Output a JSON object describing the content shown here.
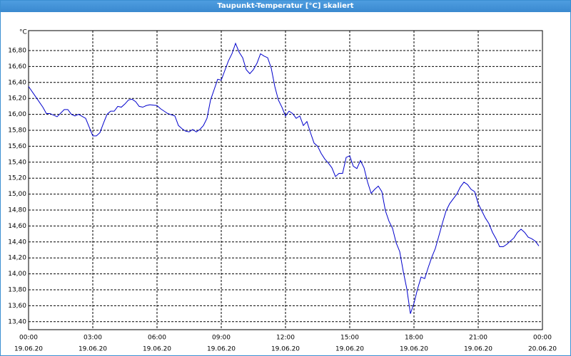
{
  "title": "Taupunkt-Temperatur [°C] skaliert",
  "chart_data": {
    "type": "line",
    "y_label": "°C",
    "x": [
      0,
      20,
      40,
      50,
      60,
      80,
      100,
      110,
      120,
      130,
      140,
      160,
      170,
      180,
      190,
      200,
      210,
      220,
      230,
      240,
      250,
      260,
      270,
      280,
      290,
      300,
      310,
      320,
      330,
      340,
      360,
      370,
      390,
      410,
      420,
      430,
      440,
      450,
      460,
      470,
      480,
      490,
      500,
      510,
      520,
      530,
      540,
      550,
      560,
      570,
      580,
      590,
      600,
      610,
      620,
      630,
      640,
      650,
      660,
      670,
      680,
      690,
      700,
      710,
      720,
      730,
      740,
      750,
      760,
      770,
      780,
      790,
      800,
      810,
      820,
      830,
      840,
      850,
      860,
      870,
      880,
      890,
      900,
      910,
      920,
      930,
      940,
      950,
      960,
      970,
      980,
      990,
      1000,
      1010,
      1020,
      1030,
      1040,
      1050,
      1060,
      1070,
      1080,
      1090,
      1100,
      1110,
      1120,
      1130,
      1140,
      1150,
      1160,
      1170,
      1180,
      1190,
      1200,
      1210,
      1220,
      1230,
      1240,
      1250,
      1260,
      1270,
      1280,
      1290,
      1300,
      1310,
      1320,
      1330,
      1340,
      1350,
      1360,
      1370,
      1380,
      1390,
      1400,
      1410,
      1420,
      1430
    ],
    "series": [
      {
        "color": "#0000cc",
        "values": [
          16.35,
          16.22,
          16.09,
          16.01,
          16.01,
          15.97,
          16.06,
          16.06,
          16.0,
          15.98,
          16.0,
          15.95,
          15.84,
          15.73,
          15.73,
          15.77,
          15.89,
          16.0,
          16.04,
          16.04,
          16.1,
          16.09,
          16.13,
          16.18,
          16.19,
          16.16,
          16.1,
          16.09,
          16.11,
          16.12,
          16.11,
          16.07,
          16.01,
          15.98,
          15.86,
          15.82,
          15.79,
          15.78,
          15.81,
          15.78,
          15.81,
          15.86,
          15.95,
          16.18,
          16.31,
          16.44,
          16.43,
          16.55,
          16.67,
          16.76,
          16.89,
          16.78,
          16.71,
          16.56,
          16.51,
          16.56,
          16.64,
          16.76,
          16.73,
          16.71,
          16.58,
          16.35,
          16.18,
          16.09,
          15.98,
          16.04,
          16.01,
          15.95,
          15.98,
          15.86,
          15.91,
          15.77,
          15.64,
          15.6,
          15.51,
          15.44,
          15.39,
          15.33,
          15.22,
          15.26,
          15.26,
          15.46,
          15.48,
          15.35,
          15.32,
          15.42,
          15.33,
          15.15,
          15.01,
          15.06,
          15.1,
          15.03,
          14.79,
          14.66,
          14.57,
          14.39,
          14.28,
          14.03,
          13.81,
          13.5,
          13.63,
          13.81,
          13.96,
          13.94,
          14.08,
          14.21,
          14.32,
          14.48,
          14.64,
          14.79,
          14.88,
          14.94,
          15.0,
          15.09,
          15.15,
          15.12,
          15.06,
          15.03,
          14.88,
          14.79,
          14.7,
          14.63,
          14.52,
          14.44,
          14.34,
          14.34,
          14.37,
          14.41,
          14.45,
          14.52,
          14.56,
          14.52,
          14.46,
          14.44,
          14.41,
          14.35
        ]
      }
    ],
    "xlim": [
      0,
      1440
    ],
    "xticks": [
      {
        "value": 0,
        "label": "00:00",
        "date": "19.06.20"
      },
      {
        "value": 180,
        "label": "03:00",
        "date": "19.06.20"
      },
      {
        "value": 360,
        "label": "06:00",
        "date": "19.06.20"
      },
      {
        "value": 540,
        "label": "09:00",
        "date": "19.06.20"
      },
      {
        "value": 720,
        "label": "12:00",
        "date": "19.06.20"
      },
      {
        "value": 900,
        "label": "15:00",
        "date": "19.06.20"
      },
      {
        "value": 1080,
        "label": "18:00",
        "date": "19.06.20"
      },
      {
        "value": 1260,
        "label": "21:00",
        "date": "19.06.20"
      },
      {
        "value": 1440,
        "label": "00:00",
        "date": "20.06.20"
      }
    ],
    "ylim": [
      13.3,
      17.05
    ],
    "yticks": [
      {
        "value": 13.4,
        "label": "13,40"
      },
      {
        "value": 13.6,
        "label": "13,60"
      },
      {
        "value": 13.8,
        "label": "13,80"
      },
      {
        "value": 14.0,
        "label": "14,00"
      },
      {
        "value": 14.2,
        "label": "14,20"
      },
      {
        "value": 14.4,
        "label": "14,40"
      },
      {
        "value": 14.6,
        "label": "14,60"
      },
      {
        "value": 14.8,
        "label": "14,80"
      },
      {
        "value": 15.0,
        "label": "15,00"
      },
      {
        "value": 15.2,
        "label": "15,20"
      },
      {
        "value": 15.4,
        "label": "15,40"
      },
      {
        "value": 15.6,
        "label": "15,60"
      },
      {
        "value": 15.8,
        "label": "15,80"
      },
      {
        "value": 16.0,
        "label": "16,00"
      },
      {
        "value": 16.2,
        "label": "16,20"
      },
      {
        "value": 16.4,
        "label": "16,40"
      },
      {
        "value": 16.6,
        "label": "16,60"
      },
      {
        "value": 16.8,
        "label": "16,80"
      }
    ],
    "grid": true
  }
}
